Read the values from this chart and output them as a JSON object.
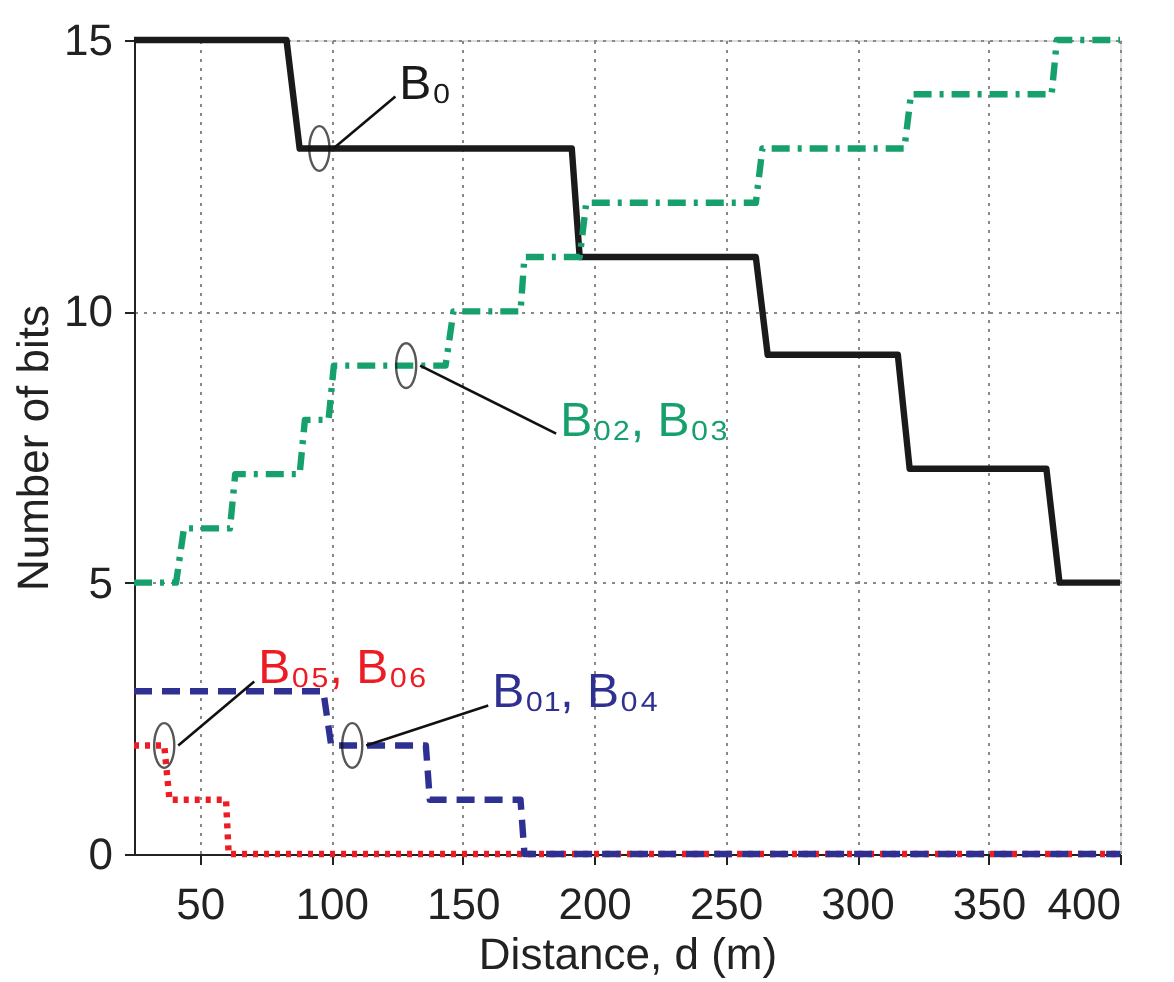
{
  "chart_data": {
    "type": "line",
    "xlabel": "Distance, d (m)",
    "ylabel": "Number of bits",
    "xlim": [
      25,
      400
    ],
    "xticks": [
      50,
      100,
      150,
      200,
      250,
      300,
      350,
      400
    ],
    "ylim": [
      0,
      15
    ],
    "yticks": [
      0,
      5,
      10,
      15
    ],
    "grid": true,
    "marker": "none",
    "series": [
      {
        "color": "#1a1a1a",
        "line_style": "solid",
        "x": [
          25,
          83,
          88,
          191.5,
          194.5,
          261.5,
          266,
          315.5,
          320,
          372,
          377,
          400
        ],
        "values": [
          15,
          15,
          13,
          13,
          11,
          11,
          9.2,
          9.2,
          7.1,
          7.1,
          5,
          5
        ]
      },
      {
        "color": "#16a06c",
        "line_style": "dashdot",
        "x": [
          25,
          41,
          44,
          61.5,
          63.5,
          88,
          90,
          99,
          101,
          143.5,
          146.5,
          172,
          173.5,
          194.5,
          197,
          261.5,
          264,
          318,
          320.5,
          374,
          376,
          400
        ],
        "values": [
          5,
          5,
          6,
          6,
          7,
          7,
          8,
          8,
          9,
          9,
          10,
          10,
          11,
          11,
          12,
          12,
          13,
          13,
          14,
          14,
          15,
          15
        ]
      },
      {
        "color": "#ed1c24",
        "line_style": "dotted",
        "x": [
          25,
          36.5,
          38.5,
          60,
          61,
          400
        ],
        "values": [
          2,
          2,
          1,
          1,
          0,
          0
        ]
      },
      {
        "color": "#2e3192",
        "line_style": "dashed",
        "x": [
          25,
          97,
          100,
          136,
          137.5,
          172,
          173.5,
          400
        ],
        "values": [
          3,
          3,
          2,
          2,
          1,
          1,
          0,
          0
        ]
      }
    ],
    "annotations": [
      {
        "text": "B₀",
        "x": 95.5,
        "y": 13
      },
      {
        "text": "B₀₂, B₀₃",
        "x": 128.5,
        "y": 9
      },
      {
        "text": "B₀₅, B₀₆",
        "x": 36.5,
        "y": 2
      },
      {
        "text": "B₀₁, B₀₄",
        "x": 108,
        "y": 2
      }
    ]
  }
}
